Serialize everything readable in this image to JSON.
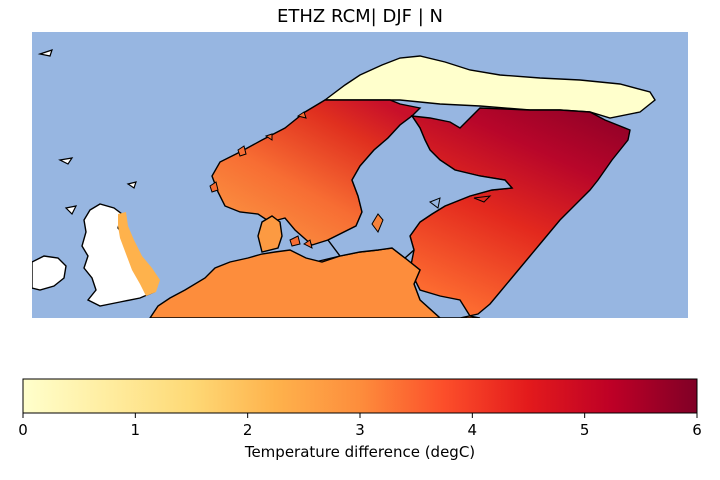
{
  "title": "ETHZ RCM| DJF | N",
  "colorbar": {
    "label": "Temperature difference (degC)",
    "ticks": [
      "0",
      "1",
      "2",
      "3",
      "4",
      "5",
      "6"
    ],
    "vmin": 0,
    "vmax": 6,
    "colormap": "YlOrRd"
  },
  "colors": {
    "ocean": "#97b6e1",
    "land_no_data": "#ffffff",
    "coastline": "#000000"
  }
}
